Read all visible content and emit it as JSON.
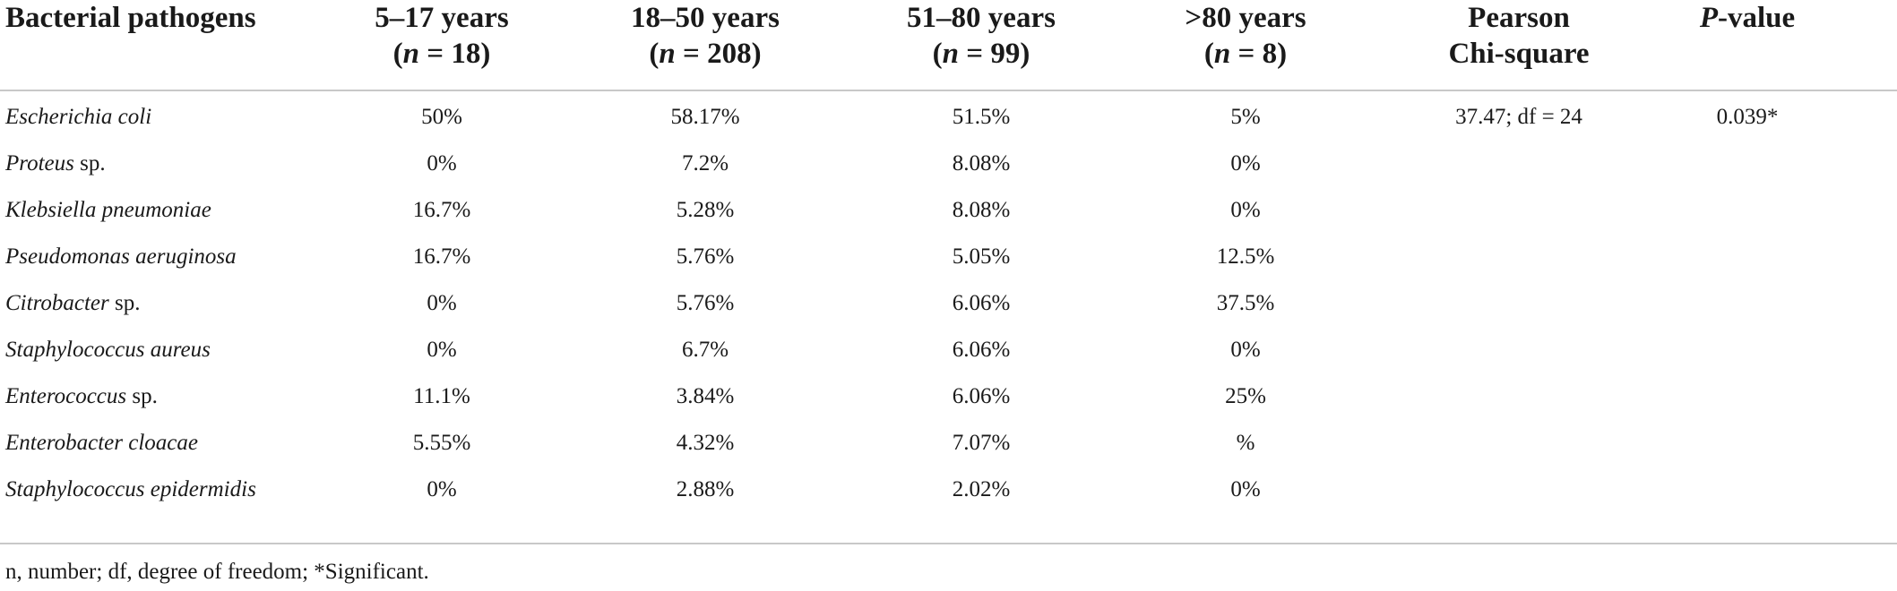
{
  "table": {
    "headers": [
      {
        "line1": "Bacterial pathogens",
        "line2": ""
      },
      {
        "line1": "5–17 years",
        "n_label": "n",
        "n_rest": " = 18)"
      },
      {
        "line1": "18–50 years",
        "n_label": "n",
        "n_rest": " = 208)"
      },
      {
        "line1": "51–80 years",
        "n_label": "n",
        "n_rest": " = 99)"
      },
      {
        "line1": ">80 years",
        "n_label": "n",
        "n_rest": " = 8)"
      },
      {
        "line1": "Pearson",
        "line2": "Chi-square"
      },
      {
        "p_italic": "P",
        "p_rest": "-value"
      }
    ],
    "rows": [
      {
        "genus": "Escherichia coli",
        "suffix": "",
        "values": [
          "50%",
          "58.17%",
          "51.5%",
          "5%"
        ],
        "chi": "37.47; df = 24",
        "p": "0.039*"
      },
      {
        "genus": "Proteus",
        "suffix": " sp.",
        "values": [
          "0%",
          "7.2%",
          "8.08%",
          "0%"
        ],
        "chi": "",
        "p": ""
      },
      {
        "genus": "Klebsiella pneumoniae",
        "suffix": "",
        "values": [
          "16.7%",
          "5.28%",
          "8.08%",
          "0%"
        ],
        "chi": "",
        "p": ""
      },
      {
        "genus": "Pseudomonas aeruginosa",
        "suffix": "",
        "values": [
          "16.7%",
          "5.76%",
          "5.05%",
          "12.5%"
        ],
        "chi": "",
        "p": ""
      },
      {
        "genus": "Citrobacter",
        "suffix": " sp.",
        "values": [
          "0%",
          "5.76%",
          "6.06%",
          "37.5%"
        ],
        "chi": "",
        "p": ""
      },
      {
        "genus": "Staphylococcus aureus",
        "suffix": "",
        "values": [
          "0%",
          "6.7%",
          "6.06%",
          "0%"
        ],
        "chi": "",
        "p": ""
      },
      {
        "genus": "Enterococcus",
        "suffix": " sp.",
        "values": [
          "11.1%",
          "3.84%",
          "6.06%",
          "25%"
        ],
        "chi": "",
        "p": ""
      },
      {
        "genus": "Enterobacter cloacae",
        "suffix": "",
        "values": [
          "5.55%",
          "4.32%",
          "7.07%",
          "%"
        ],
        "chi": "",
        "p": ""
      },
      {
        "genus": "Staphylococcus epidermidis",
        "suffix": "",
        "values": [
          "0%",
          "2.88%",
          "2.02%",
          "0%"
        ],
        "chi": "",
        "p": ""
      }
    ],
    "footnote": "n, number; df, degree of freedom; *Significant."
  }
}
